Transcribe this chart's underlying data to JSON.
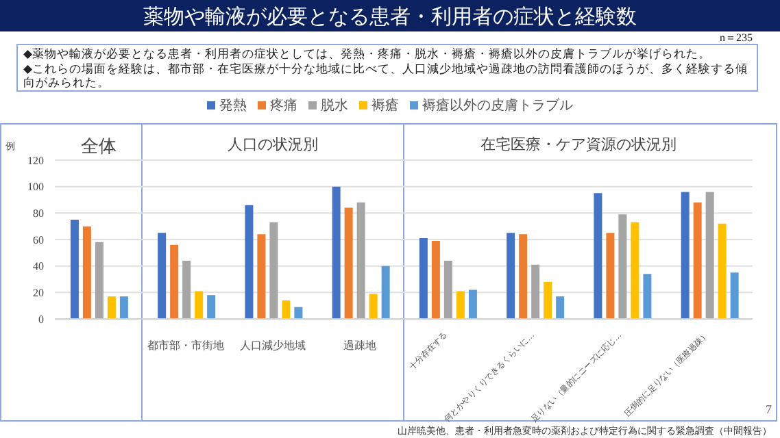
{
  "chart_data": {
    "type": "bar",
    "title": "薬物や輸液が必要となる患者・利用者の症状と経験数",
    "subtitle": "◆薬物や輸液が必要となる患者・利用者の症状としては、発熱・疼痛・脱水・褥瘡・褥瘡以外の皮膚トラブルが挙げられた。\n◆これらの場面を経験は、都市部・在宅医療が十分な地域に比べて、人口減少地域や過疎地の訪問看護師のほうが、多く経験する傾向がみられた。",
    "ylabel": "例",
    "categories": [
      null,
      "都市部・市街地",
      "人口減少地域",
      "過疎地",
      "十分存在する",
      "何とかやりくりできるくらいに…",
      "足りない（量的にニーズに応じ…",
      "圧倒的に足りない（医療過疎）"
    ],
    "series": [
      {
        "name": "発熱",
        "color": "#4472c4",
        "values": [
          75,
          65,
          86,
          100,
          61,
          65,
          95,
          96
        ]
      },
      {
        "name": "疼痛",
        "color": "#ed7d31",
        "values": [
          70,
          56,
          64,
          84,
          59,
          64,
          65,
          88
        ]
      },
      {
        "name": "脱水",
        "color": "#a5a5a5",
        "values": [
          58,
          44,
          73,
          88,
          44,
          41,
          79,
          96
        ]
      },
      {
        "name": "褥瘡",
        "color": "#ffc000",
        "values": [
          17,
          21,
          14,
          19,
          21,
          28,
          73,
          72
        ]
      },
      {
        "name": "褥瘡以外の皮膚トラブル",
        "color": "#5b9bd5",
        "values": [
          17,
          18,
          9,
          40,
          22,
          17,
          34,
          35
        ]
      }
    ],
    "ylim": [
      0,
      120
    ],
    "yticks": [
      0,
      20,
      40,
      60,
      80,
      100,
      120
    ],
    "grid": "y",
    "legend": "top",
    "annotations": [
      "全体",
      "人口の状況別",
      "在宅医療・ケア資源の状況別",
      "n＝235",
      "7",
      "山岸暁美他、患者・利用者急変時の薬剤および特定行為に関する緊急調査（中間報告）"
    ]
  }
}
